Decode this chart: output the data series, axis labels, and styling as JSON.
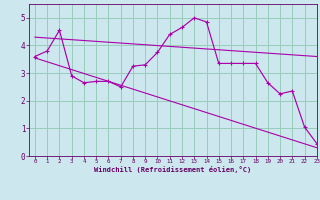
{
  "xlabel": "Windchill (Refroidissement éolien,°C)",
  "bg_color": "#cce8ee",
  "line_color": "#aa00aa",
  "grid_color": "#99ccbb",
  "spine_color": "#660066",
  "series1_x": [
    0,
    1,
    2,
    3,
    4,
    5,
    6,
    7,
    8,
    9,
    10,
    11,
    12,
    13,
    14,
    15,
    16,
    17,
    18,
    19,
    20,
    21,
    22,
    23
  ],
  "series1_y": [
    3.6,
    3.8,
    4.55,
    2.9,
    2.65,
    2.7,
    2.7,
    2.5,
    3.25,
    3.3,
    3.75,
    4.4,
    4.65,
    5.0,
    4.85,
    3.35,
    3.35,
    3.35,
    3.35,
    2.65,
    2.25,
    2.35,
    1.05,
    0.45
  ],
  "trend1_x": [
    0,
    23
  ],
  "trend1_y": [
    4.3,
    3.6
  ],
  "trend2_x": [
    0,
    23
  ],
  "trend2_y": [
    3.55,
    0.3
  ],
  "ylim": [
    0,
    5.5
  ],
  "xlim": [
    -0.5,
    23
  ],
  "yticks": [
    0,
    1,
    2,
    3,
    4,
    5
  ],
  "xticks": [
    0,
    1,
    2,
    3,
    4,
    5,
    6,
    7,
    8,
    9,
    10,
    11,
    12,
    13,
    14,
    15,
    16,
    17,
    18,
    19,
    20,
    21,
    22,
    23
  ]
}
